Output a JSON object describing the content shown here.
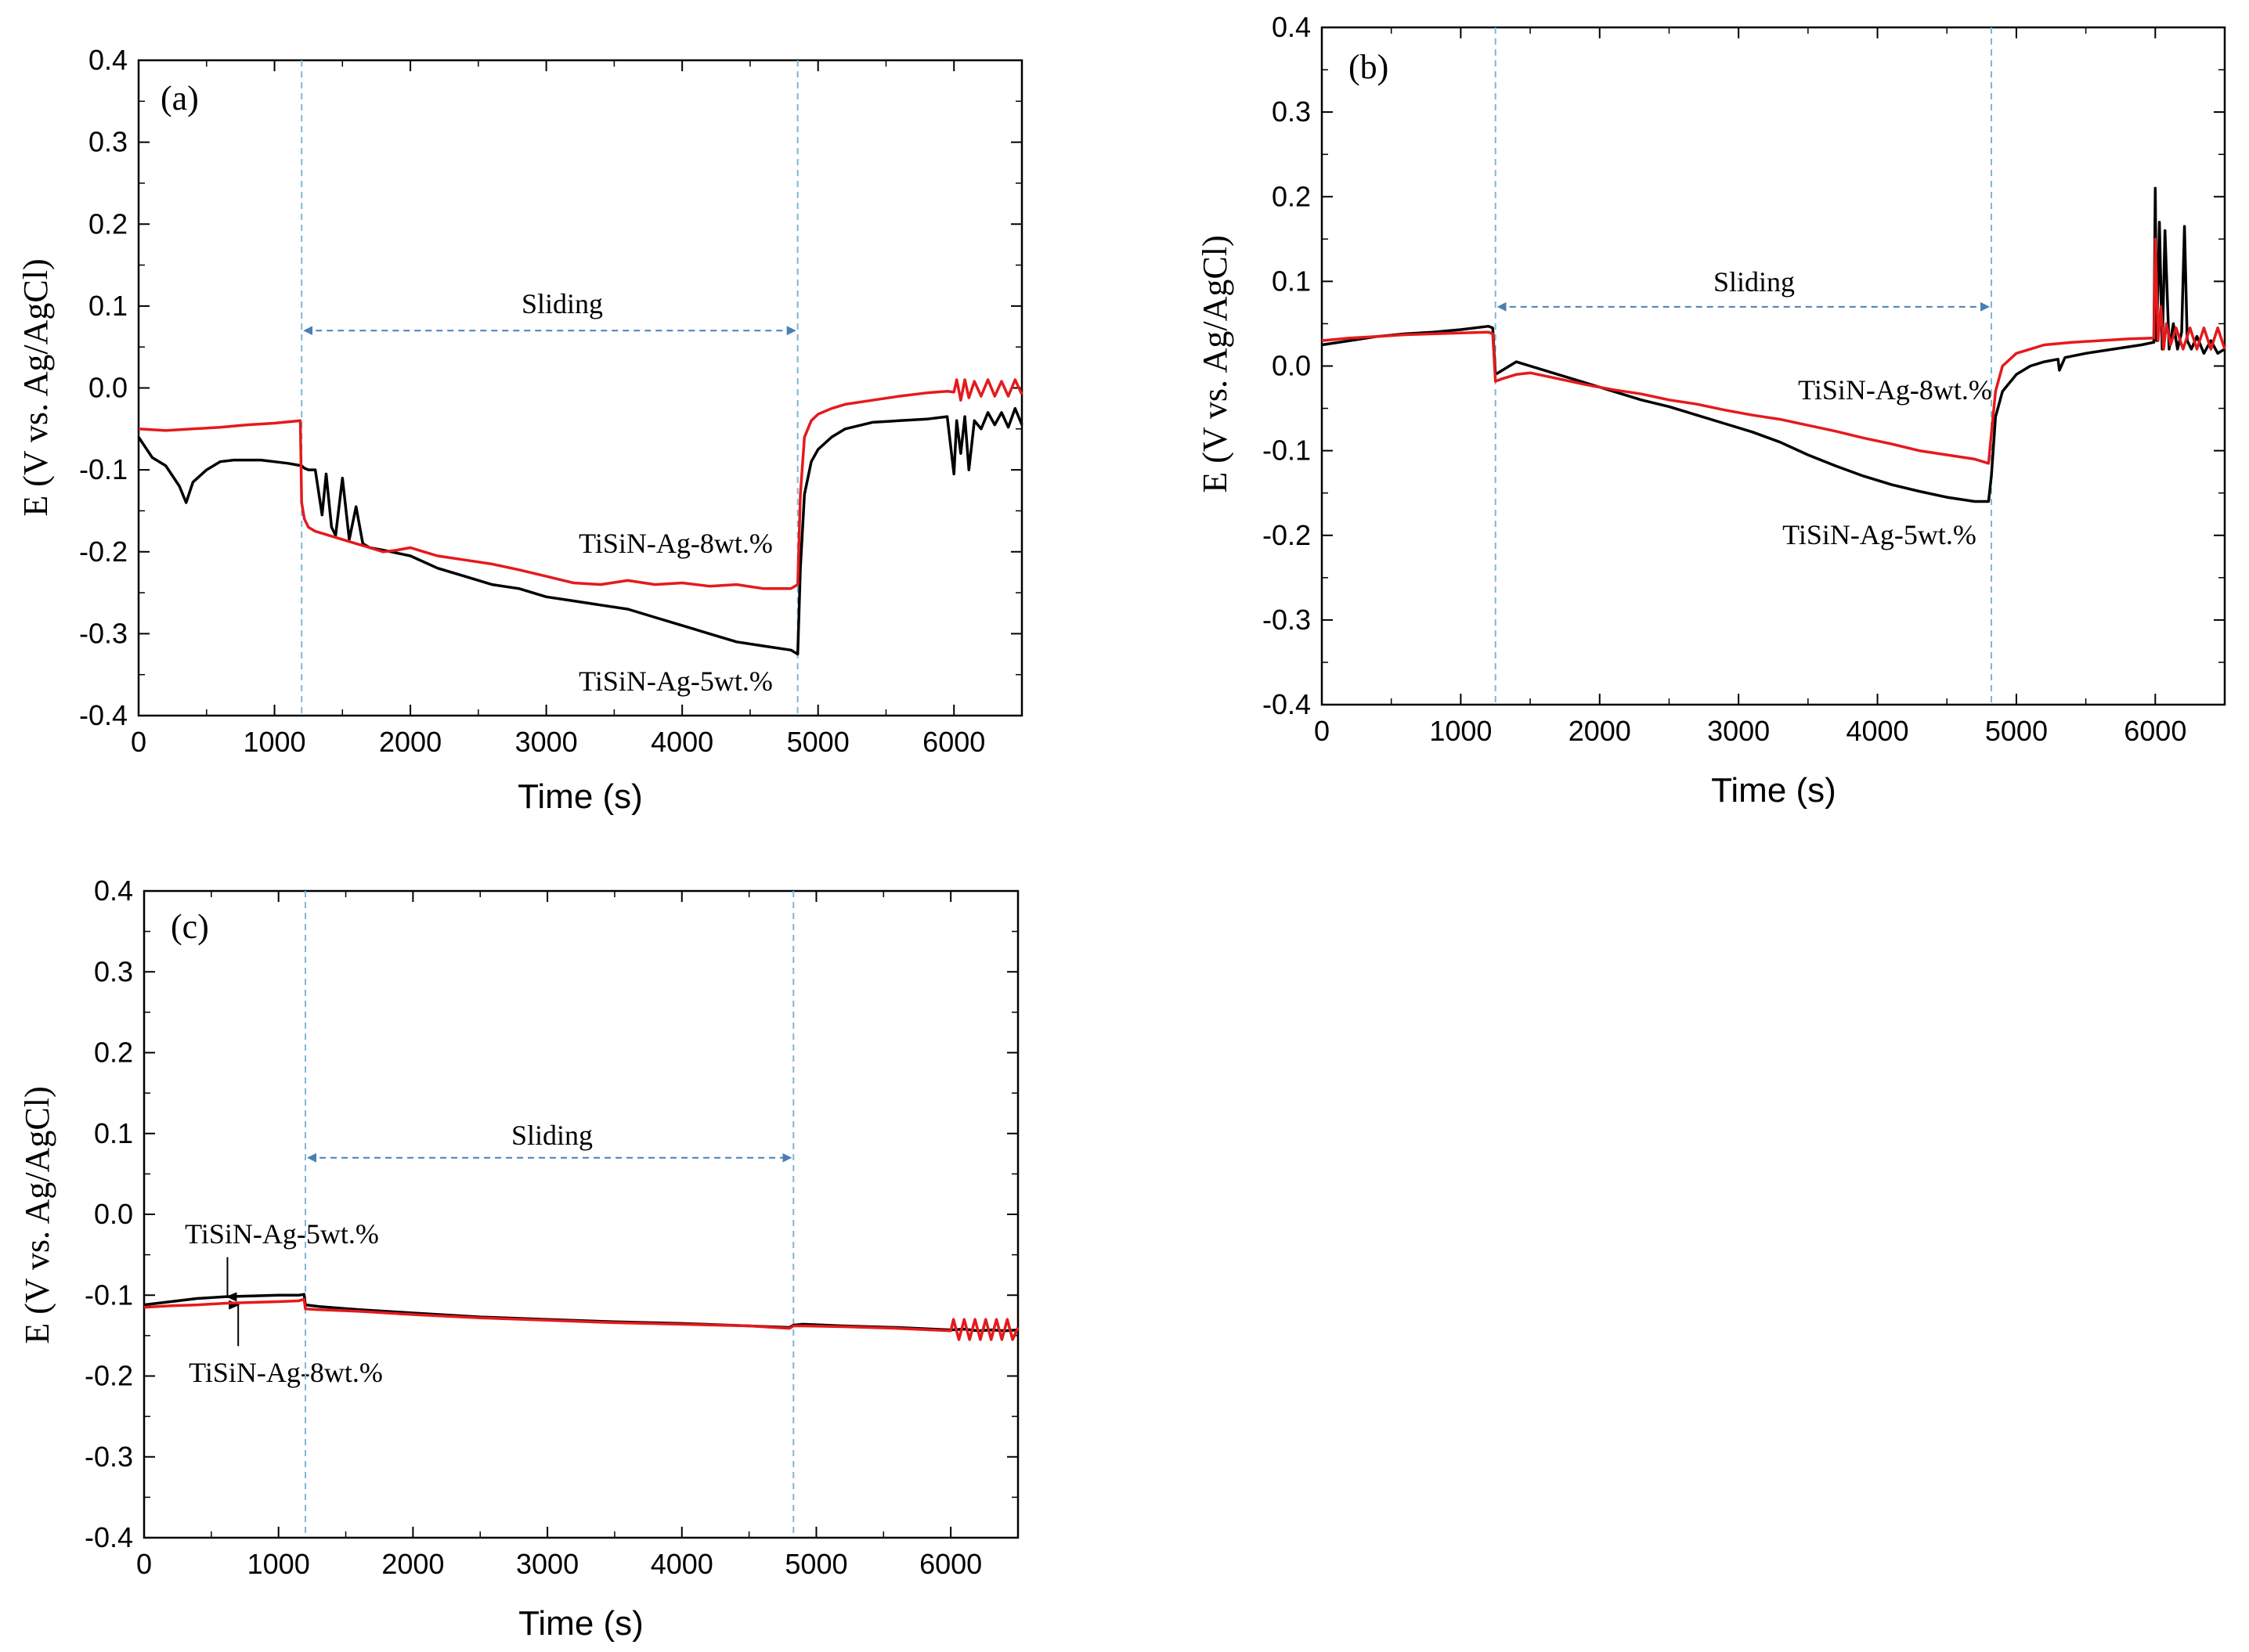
{
  "colors": {
    "black_series": "#000000",
    "red_series": "#e41a1c",
    "guide": "#7fb6d6",
    "arrow": "#4a7fb5"
  },
  "chart_data": [
    {
      "type": "line",
      "panel_label": "(a)",
      "xlabel": "Time (s)",
      "ylabel": "E (V vs. Ag/AgCl)",
      "xlim": [
        0,
        6500
      ],
      "ylim": [
        -0.4,
        0.4
      ],
      "x_ticks": [
        0,
        1000,
        2000,
        3000,
        4000,
        5000,
        6000
      ],
      "x_tick_labels": [
        "0",
        "1000",
        "2000",
        "3000",
        "4000",
        "5000",
        "6000"
      ],
      "y_ticks": [
        0.4,
        0.3,
        0.2,
        0.1,
        0.0,
        -0.1,
        -0.2,
        -0.3,
        -0.4
      ],
      "y_tick_labels": [
        "0.4",
        "0.3",
        "0.2",
        "0.1",
        "0.0",
        "-0.1",
        "-0.2",
        "-0.3",
        "-0.4"
      ],
      "sliding": {
        "label": "Sliding",
        "start": 1200,
        "end": 4850,
        "arrow_y": 0.07
      },
      "series": [
        {
          "name": "TiSiN-Ag-5wt.%",
          "color": "#000000",
          "x": [
            0,
            100,
            200,
            300,
            350,
            400,
            500,
            600,
            700,
            800,
            900,
            1000,
            1100,
            1200,
            1220,
            1250,
            1300,
            1350,
            1380,
            1420,
            1450,
            1500,
            1550,
            1600,
            1650,
            1700,
            1800,
            2000,
            2200,
            2400,
            2600,
            2800,
            3000,
            3200,
            3400,
            3600,
            3800,
            4000,
            4200,
            4400,
            4600,
            4800,
            4850,
            4870,
            4900,
            4950,
            5000,
            5100,
            5200,
            5400,
            5600,
            5800,
            5950,
            6000,
            6020,
            6050,
            6080,
            6110,
            6150,
            6200,
            6250,
            6300,
            6350,
            6400,
            6450,
            6500
          ],
          "y": [
            -0.06,
            -0.085,
            -0.095,
            -0.12,
            -0.14,
            -0.115,
            -0.1,
            -0.09,
            -0.088,
            -0.088,
            -0.088,
            -0.09,
            -0.092,
            -0.095,
            -0.098,
            -0.1,
            -0.1,
            -0.155,
            -0.105,
            -0.17,
            -0.18,
            -0.11,
            -0.185,
            -0.145,
            -0.19,
            -0.195,
            -0.198,
            -0.205,
            -0.22,
            -0.23,
            -0.24,
            -0.245,
            -0.255,
            -0.26,
            -0.265,
            -0.27,
            -0.28,
            -0.29,
            -0.3,
            -0.31,
            -0.315,
            -0.32,
            -0.325,
            -0.22,
            -0.13,
            -0.09,
            -0.075,
            -0.06,
            -0.05,
            -0.042,
            -0.04,
            -0.038,
            -0.035,
            -0.105,
            -0.04,
            -0.08,
            -0.035,
            -0.1,
            -0.04,
            -0.05,
            -0.03,
            -0.045,
            -0.03,
            -0.048,
            -0.025,
            -0.045
          ]
        },
        {
          "name": "TiSiN-Ag-8wt.%",
          "color": "#e41a1c",
          "x": [
            0,
            200,
            400,
            600,
            800,
            1000,
            1190,
            1200,
            1220,
            1250,
            1300,
            1400,
            1500,
            1600,
            1700,
            1800,
            1900,
            2000,
            2100,
            2200,
            2400,
            2600,
            2800,
            3000,
            3200,
            3400,
            3600,
            3800,
            4000,
            4200,
            4400,
            4600,
            4800,
            4850,
            4870,
            4900,
            4950,
            5000,
            5100,
            5200,
            5400,
            5600,
            5800,
            5950,
            6000,
            6020,
            6050,
            6080,
            6110,
            6150,
            6200,
            6250,
            6300,
            6350,
            6400,
            6450,
            6500
          ],
          "y": [
            -0.05,
            -0.052,
            -0.05,
            -0.048,
            -0.045,
            -0.043,
            -0.04,
            -0.14,
            -0.16,
            -0.17,
            -0.175,
            -0.18,
            -0.185,
            -0.19,
            -0.195,
            -0.2,
            -0.198,
            -0.195,
            -0.2,
            -0.205,
            -0.21,
            -0.215,
            -0.222,
            -0.23,
            -0.238,
            -0.24,
            -0.235,
            -0.24,
            -0.238,
            -0.242,
            -0.24,
            -0.245,
            -0.245,
            -0.24,
            -0.13,
            -0.06,
            -0.04,
            -0.032,
            -0.025,
            -0.02,
            -0.015,
            -0.01,
            -0.006,
            -0.004,
            -0.005,
            0.01,
            -0.015,
            0.01,
            -0.012,
            0.008,
            -0.01,
            0.01,
            -0.01,
            0.008,
            -0.01,
            0.01,
            -0.008
          ]
        }
      ],
      "annotations": [
        {
          "text": "TiSiN-Ag-8wt.%",
          "x": 3100,
          "y": -0.19
        },
        {
          "text": "TiSiN-Ag-5wt.%",
          "x": 3100,
          "y": -0.36
        }
      ]
    },
    {
      "type": "line",
      "panel_label": "(b)",
      "xlabel": "Time (s)",
      "ylabel": "E (V vs. Ag/AgCl)",
      "xlim": [
        0,
        6500
      ],
      "ylim": [
        -0.4,
        0.4
      ],
      "x_ticks": [
        0,
        1000,
        2000,
        3000,
        4000,
        5000,
        6000
      ],
      "x_tick_labels": [
        "0",
        "1000",
        "2000",
        "3000",
        "4000",
        "5000",
        "6000"
      ],
      "y_ticks": [
        0.4,
        0.3,
        0.2,
        0.1,
        0.0,
        -0.1,
        -0.2,
        -0.3,
        -0.4
      ],
      "y_tick_labels": [
        "0.4",
        "0.3",
        "0.2",
        "0.1",
        "0.0",
        "-0.1",
        "-0.2",
        "-0.3",
        "-0.4"
      ],
      "sliding": {
        "label": "Sliding",
        "start": 1250,
        "end": 4820,
        "arrow_y": 0.07
      },
      "series": [
        {
          "name": "TiSiN-Ag-5wt.%",
          "color": "#000000",
          "x": [
            0,
            200,
            400,
            600,
            800,
            1000,
            1200,
            1230,
            1250,
            1300,
            1400,
            1500,
            1700,
            1900,
            2100,
            2300,
            2500,
            2700,
            2900,
            3100,
            3300,
            3500,
            3700,
            3900,
            4100,
            4300,
            4500,
            4700,
            4800,
            4820,
            4850,
            4900,
            5000,
            5100,
            5200,
            5300,
            5310,
            5350,
            5500,
            5700,
            5900,
            5990,
            6000,
            6010,
            6030,
            6050,
            6070,
            6100,
            6130,
            6160,
            6190,
            6210,
            6230,
            6260,
            6300,
            6350,
            6400,
            6450,
            6500
          ],
          "y": [
            0.025,
            0.03,
            0.035,
            0.038,
            0.04,
            0.043,
            0.047,
            0.045,
            -0.01,
            -0.005,
            0.005,
            0.0,
            -0.01,
            -0.02,
            -0.03,
            -0.04,
            -0.048,
            -0.058,
            -0.068,
            -0.078,
            -0.09,
            -0.105,
            -0.118,
            -0.13,
            -0.14,
            -0.148,
            -0.155,
            -0.16,
            -0.16,
            -0.13,
            -0.06,
            -0.03,
            -0.01,
            0.0,
            0.005,
            0.008,
            -0.005,
            0.01,
            0.015,
            0.02,
            0.025,
            0.028,
            0.21,
            0.03,
            0.17,
            0.02,
            0.16,
            0.02,
            0.05,
            0.02,
            0.04,
            0.165,
            0.03,
            0.02,
            0.035,
            0.015,
            0.03,
            0.015,
            0.02
          ]
        },
        {
          "name": "TiSiN-Ag-8wt.%",
          "color": "#e41a1c",
          "x": [
            0,
            200,
            400,
            600,
            800,
            1000,
            1200,
            1230,
            1250,
            1300,
            1400,
            1500,
            1700,
            1900,
            2100,
            2300,
            2500,
            2700,
            2900,
            3100,
            3300,
            3500,
            3700,
            3900,
            4100,
            4300,
            4500,
            4700,
            4800,
            4820,
            4850,
            4900,
            5000,
            5100,
            5200,
            5400,
            5600,
            5800,
            5990,
            6000,
            6020,
            6040,
            6060,
            6080,
            6110,
            6150,
            6200,
            6250,
            6300,
            6350,
            6400,
            6450,
            6500
          ],
          "y": [
            0.03,
            0.033,
            0.035,
            0.037,
            0.038,
            0.039,
            0.04,
            0.038,
            -0.018,
            -0.015,
            -0.01,
            -0.008,
            -0.015,
            -0.022,
            -0.028,
            -0.033,
            -0.04,
            -0.045,
            -0.052,
            -0.058,
            -0.063,
            -0.07,
            -0.077,
            -0.085,
            -0.092,
            -0.1,
            -0.105,
            -0.11,
            -0.115,
            -0.08,
            -0.03,
            0.0,
            0.015,
            0.02,
            0.025,
            0.028,
            0.03,
            0.032,
            0.033,
            0.15,
            0.03,
            0.07,
            0.02,
            0.05,
            0.025,
            0.045,
            0.02,
            0.045,
            0.02,
            0.045,
            0.02,
            0.045,
            0.02
          ]
        }
      ],
      "annotations": [
        {
          "text": "TiSiN-Ag-8wt.%",
          "x": 3750,
          "y": -0.03
        },
        {
          "text": "TiSiN-Ag-5wt.%",
          "x": 3750,
          "y": -0.205
        }
      ]
    },
    {
      "type": "line",
      "panel_label": "(c)",
      "xlabel": "Time (s)",
      "ylabel": "E (V vs. Ag/AgCl)",
      "xlim": [
        0,
        6500
      ],
      "ylim": [
        -0.4,
        0.4
      ],
      "x_ticks": [
        0,
        1000,
        2000,
        3000,
        4000,
        5000,
        6000
      ],
      "x_tick_labels": [
        "0",
        "1000",
        "2000",
        "3000",
        "4000",
        "5000",
        "6000"
      ],
      "y_ticks": [
        0.4,
        0.3,
        0.2,
        0.1,
        0.0,
        -0.1,
        -0.2,
        -0.3,
        -0.4
      ],
      "y_tick_labels": [
        "0.4",
        "0.3",
        "0.2",
        "0.1",
        "0.0",
        "-0.1",
        "-0.2",
        "-0.3",
        "-0.4"
      ],
      "sliding": {
        "label": "Sliding",
        "start": 1200,
        "end": 4830,
        "arrow_y": 0.07
      },
      "series": [
        {
          "name": "TiSiN-Ag-5wt.%",
          "color": "#000000",
          "x": [
            0,
            200,
            400,
            600,
            800,
            1000,
            1150,
            1190,
            1200,
            1300,
            1600,
            2000,
            2500,
            3000,
            3500,
            4000,
            4500,
            4800,
            4830,
            4900,
            5200,
            5600,
            6000,
            6100,
            6200,
            6300,
            6400,
            6500
          ],
          "y": [
            -0.112,
            -0.108,
            -0.104,
            -0.102,
            -0.101,
            -0.1,
            -0.1,
            -0.099,
            -0.112,
            -0.114,
            -0.118,
            -0.122,
            -0.127,
            -0.13,
            -0.133,
            -0.135,
            -0.138,
            -0.14,
            -0.137,
            -0.136,
            -0.138,
            -0.14,
            -0.143,
            -0.142,
            -0.144,
            -0.143,
            -0.144,
            -0.143
          ]
        },
        {
          "name": "TiSiN-Ag-8wt.%",
          "color": "#e41a1c",
          "x": [
            0,
            200,
            400,
            600,
            800,
            1000,
            1150,
            1190,
            1200,
            1300,
            1600,
            2000,
            2500,
            3000,
            3500,
            4000,
            4500,
            4800,
            4830,
            4900,
            5200,
            5600,
            6000,
            6020,
            6060,
            6100,
            6140,
            6180,
            6220,
            6260,
            6300,
            6340,
            6380,
            6420,
            6460,
            6500
          ],
          "y": [
            -0.115,
            -0.113,
            -0.112,
            -0.11,
            -0.109,
            -0.108,
            -0.107,
            -0.105,
            -0.117,
            -0.118,
            -0.12,
            -0.124,
            -0.128,
            -0.131,
            -0.134,
            -0.136,
            -0.138,
            -0.141,
            -0.138,
            -0.138,
            -0.139,
            -0.141,
            -0.144,
            -0.13,
            -0.155,
            -0.13,
            -0.155,
            -0.13,
            -0.155,
            -0.13,
            -0.155,
            -0.13,
            -0.155,
            -0.13,
            -0.155,
            -0.14
          ]
        }
      ],
      "annotations": [
        {
          "text": "TiSiN-Ag-5wt.%",
          "x": 1150,
          "y": -0.022
        },
        {
          "text": "TiSiN-Ag-8wt.%",
          "x": 1150,
          "y": -0.198
        }
      ],
      "pointer_arrows": [
        {
          "x": 620,
          "y_from": -0.053,
          "y_to": -0.102
        },
        {
          "x": 700,
          "y_from": -0.163,
          "y_to": -0.112
        }
      ]
    }
  ]
}
